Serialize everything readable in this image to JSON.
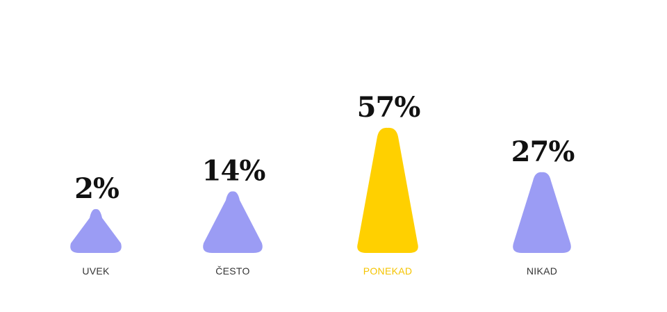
{
  "chart_data": {
    "type": "bar",
    "categories": [
      "UVEK",
      "ČESTO",
      "PONEKAD",
      "NIKAD"
    ],
    "values": [
      2,
      14,
      57,
      27
    ],
    "value_labels": [
      "2%",
      "14%",
      "57%",
      "27%"
    ],
    "unit": "%",
    "highlight_index": 2,
    "ylim": [
      0,
      57
    ],
    "grid": false,
    "legend": "none"
  },
  "colors": {
    "default_bar": "#9b9cf4",
    "highlight_bar": "#ffd000",
    "value_text": "#111111",
    "category_text": "#333333",
    "highlight_category_text": "#f5c400"
  }
}
